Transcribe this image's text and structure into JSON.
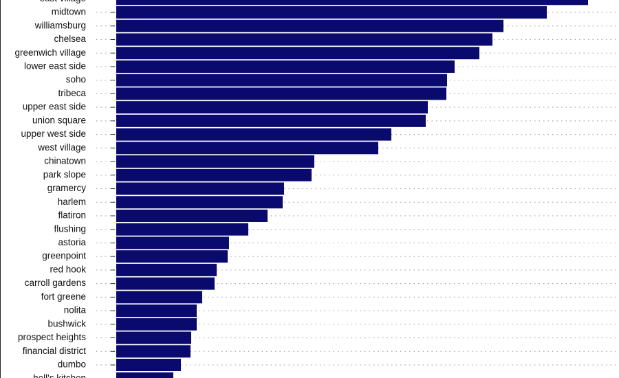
{
  "chart_data": {
    "type": "bar",
    "orientation": "horizontal",
    "color": "#0a0a6e",
    "grid": true,
    "categories": [
      "east village",
      "midtown",
      "williamsburg",
      "chelsea",
      "greenwich village",
      "lower east side",
      "soho",
      "tribeca",
      "upper east side",
      "union square",
      "upper west side",
      "west village",
      "chinatown",
      "park slope",
      "gramercy",
      "harlem",
      "flatiron",
      "flushing",
      "astoria",
      "greenpoint",
      "red hook",
      "carroll gardens",
      "fort greene",
      "nolita",
      "bushwick",
      "prospect heights",
      "financial district",
      "dumbo",
      "hell's kitchen"
    ],
    "values": [
      686,
      626,
      563,
      547,
      528,
      492,
      481,
      480,
      453,
      450,
      400,
      381,
      288,
      284,
      244,
      242,
      220,
      192,
      164,
      162,
      146,
      143,
      125,
      117,
      117,
      109,
      108,
      94,
      83
    ]
  }
}
